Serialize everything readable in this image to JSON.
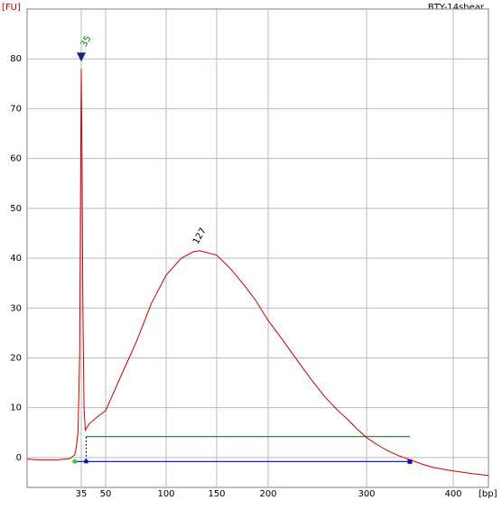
{
  "chart_data": {
    "type": "line",
    "title": "BTY-14shear",
    "ylabel": "[FU]",
    "xlabel": "[bp]",
    "xlim": [
      2,
      440
    ],
    "ylim": [
      -6,
      90
    ],
    "xticks": [
      35,
      50,
      100,
      150,
      200,
      300,
      400
    ],
    "yticks": [
      0,
      10,
      20,
      30,
      40,
      50,
      60,
      70,
      80
    ],
    "grid": true,
    "series": [
      {
        "name": "BTY-14shear",
        "color": "#cc0000",
        "x": [
          2,
          10,
          20,
          28,
          31,
          32,
          33,
          34,
          34.5,
          35,
          35.5,
          36,
          36.7,
          37.5,
          40,
          45,
          50,
          62,
          75,
          88,
          100,
          115,
          127,
          133,
          150,
          163,
          176,
          188,
          200,
          215,
          230,
          244,
          258,
          270,
          281,
          290,
          300,
          312,
          325,
          338,
          351,
          364,
          377,
          390,
          400,
          420,
          440
        ],
        "y": [
          -0.3,
          -0.5,
          -0.5,
          -0.2,
          0.5,
          2,
          5,
          20,
          50,
          78,
          60,
          30,
          10,
          5.5,
          6.8,
          8.2,
          9.4,
          16,
          23,
          31,
          36.6,
          40,
          41.3,
          41.5,
          40.6,
          38,
          34.8,
          31.5,
          27.5,
          23.5,
          19.4,
          15.6,
          12.1,
          9.6,
          7.6,
          5.8,
          4,
          2.6,
          1.3,
          0.3,
          -0.5,
          -1.3,
          -2,
          -2.4,
          -2.7,
          -3.2,
          -3.6
        ]
      }
    ],
    "annotations": [
      {
        "text": "35",
        "x": 35,
        "y": 80,
        "color": "#008000"
      },
      {
        "text": "127",
        "x": 127,
        "y": 41.5,
        "color": "#000000"
      }
    ],
    "region": {
      "x": [
        38,
        350
      ],
      "y": 4.2,
      "color": "#1a7a3a"
    },
    "baseline": {
      "x": [
        31,
        350
      ],
      "y": -0.8,
      "color": "#0000cc"
    }
  }
}
